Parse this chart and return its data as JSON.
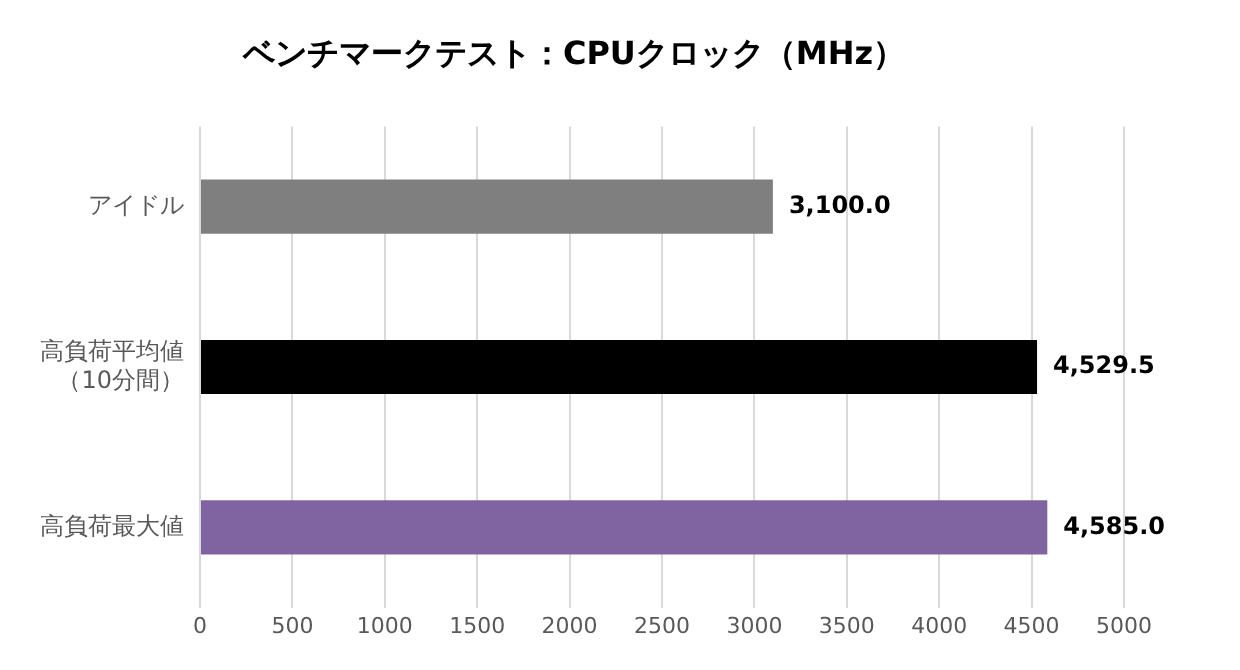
{
  "chart_data": {
    "type": "bar",
    "orientation": "horizontal",
    "title": "ベンチマークテスト：CPUクロック（MHz）",
    "categories": [
      "アイドル",
      "高負荷平均値（10分間）",
      "高負荷最大値"
    ],
    "values": [
      3100.0,
      4529.5,
      4585.0
    ],
    "colors": [
      "#7f7f7f",
      "#000000",
      "#8064a2"
    ],
    "value_labels": [
      "3,100.0",
      "4,529.5",
      "4,585.0"
    ],
    "xlim": [
      0,
      5000
    ],
    "xticks": [
      0,
      500,
      1000,
      1500,
      2000,
      2500,
      3000,
      3500,
      4000,
      4500,
      5000
    ],
    "grid": "x",
    "legend": false
  }
}
